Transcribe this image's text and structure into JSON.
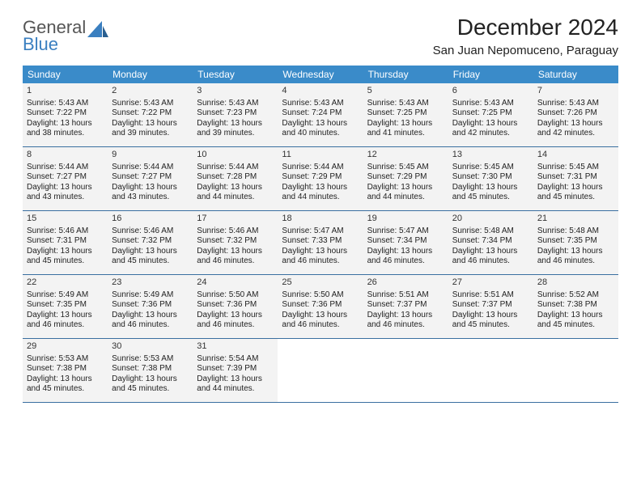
{
  "logo": {
    "line1": "General",
    "line2": "Blue"
  },
  "title": "December 2024",
  "location": "San Juan Nepomuceno, Paraguay",
  "colors": {
    "header_bg": "#3a8bc9",
    "row_border": "#3a6fa0",
    "cell_bg": "#f3f3f3",
    "logo_gray": "#555555",
    "logo_blue": "#3a7fc0"
  },
  "dow": [
    "Sunday",
    "Monday",
    "Tuesday",
    "Wednesday",
    "Thursday",
    "Friday",
    "Saturday"
  ],
  "weeks": [
    [
      {
        "n": "1",
        "sr": "5:43 AM",
        "ss": "7:22 PM",
        "dl": "13 hours and 38 minutes."
      },
      {
        "n": "2",
        "sr": "5:43 AM",
        "ss": "7:22 PM",
        "dl": "13 hours and 39 minutes."
      },
      {
        "n": "3",
        "sr": "5:43 AM",
        "ss": "7:23 PM",
        "dl": "13 hours and 39 minutes."
      },
      {
        "n": "4",
        "sr": "5:43 AM",
        "ss": "7:24 PM",
        "dl": "13 hours and 40 minutes."
      },
      {
        "n": "5",
        "sr": "5:43 AM",
        "ss": "7:25 PM",
        "dl": "13 hours and 41 minutes."
      },
      {
        "n": "6",
        "sr": "5:43 AM",
        "ss": "7:25 PM",
        "dl": "13 hours and 42 minutes."
      },
      {
        "n": "7",
        "sr": "5:43 AM",
        "ss": "7:26 PM",
        "dl": "13 hours and 42 minutes."
      }
    ],
    [
      {
        "n": "8",
        "sr": "5:44 AM",
        "ss": "7:27 PM",
        "dl": "13 hours and 43 minutes."
      },
      {
        "n": "9",
        "sr": "5:44 AM",
        "ss": "7:27 PM",
        "dl": "13 hours and 43 minutes."
      },
      {
        "n": "10",
        "sr": "5:44 AM",
        "ss": "7:28 PM",
        "dl": "13 hours and 44 minutes."
      },
      {
        "n": "11",
        "sr": "5:44 AM",
        "ss": "7:29 PM",
        "dl": "13 hours and 44 minutes."
      },
      {
        "n": "12",
        "sr": "5:45 AM",
        "ss": "7:29 PM",
        "dl": "13 hours and 44 minutes."
      },
      {
        "n": "13",
        "sr": "5:45 AM",
        "ss": "7:30 PM",
        "dl": "13 hours and 45 minutes."
      },
      {
        "n": "14",
        "sr": "5:45 AM",
        "ss": "7:31 PM",
        "dl": "13 hours and 45 minutes."
      }
    ],
    [
      {
        "n": "15",
        "sr": "5:46 AM",
        "ss": "7:31 PM",
        "dl": "13 hours and 45 minutes."
      },
      {
        "n": "16",
        "sr": "5:46 AM",
        "ss": "7:32 PM",
        "dl": "13 hours and 45 minutes."
      },
      {
        "n": "17",
        "sr": "5:46 AM",
        "ss": "7:32 PM",
        "dl": "13 hours and 46 minutes."
      },
      {
        "n": "18",
        "sr": "5:47 AM",
        "ss": "7:33 PM",
        "dl": "13 hours and 46 minutes."
      },
      {
        "n": "19",
        "sr": "5:47 AM",
        "ss": "7:34 PM",
        "dl": "13 hours and 46 minutes."
      },
      {
        "n": "20",
        "sr": "5:48 AM",
        "ss": "7:34 PM",
        "dl": "13 hours and 46 minutes."
      },
      {
        "n": "21",
        "sr": "5:48 AM",
        "ss": "7:35 PM",
        "dl": "13 hours and 46 minutes."
      }
    ],
    [
      {
        "n": "22",
        "sr": "5:49 AM",
        "ss": "7:35 PM",
        "dl": "13 hours and 46 minutes."
      },
      {
        "n": "23",
        "sr": "5:49 AM",
        "ss": "7:36 PM",
        "dl": "13 hours and 46 minutes."
      },
      {
        "n": "24",
        "sr": "5:50 AM",
        "ss": "7:36 PM",
        "dl": "13 hours and 46 minutes."
      },
      {
        "n": "25",
        "sr": "5:50 AM",
        "ss": "7:36 PM",
        "dl": "13 hours and 46 minutes."
      },
      {
        "n": "26",
        "sr": "5:51 AM",
        "ss": "7:37 PM",
        "dl": "13 hours and 46 minutes."
      },
      {
        "n": "27",
        "sr": "5:51 AM",
        "ss": "7:37 PM",
        "dl": "13 hours and 45 minutes."
      },
      {
        "n": "28",
        "sr": "5:52 AM",
        "ss": "7:38 PM",
        "dl": "13 hours and 45 minutes."
      }
    ],
    [
      {
        "n": "29",
        "sr": "5:53 AM",
        "ss": "7:38 PM",
        "dl": "13 hours and 45 minutes."
      },
      {
        "n": "30",
        "sr": "5:53 AM",
        "ss": "7:38 PM",
        "dl": "13 hours and 45 minutes."
      },
      {
        "n": "31",
        "sr": "5:54 AM",
        "ss": "7:39 PM",
        "dl": "13 hours and 44 minutes."
      },
      null,
      null,
      null,
      null
    ]
  ],
  "labels": {
    "sunrise": "Sunrise:",
    "sunset": "Sunset:",
    "daylight": "Daylight:"
  }
}
